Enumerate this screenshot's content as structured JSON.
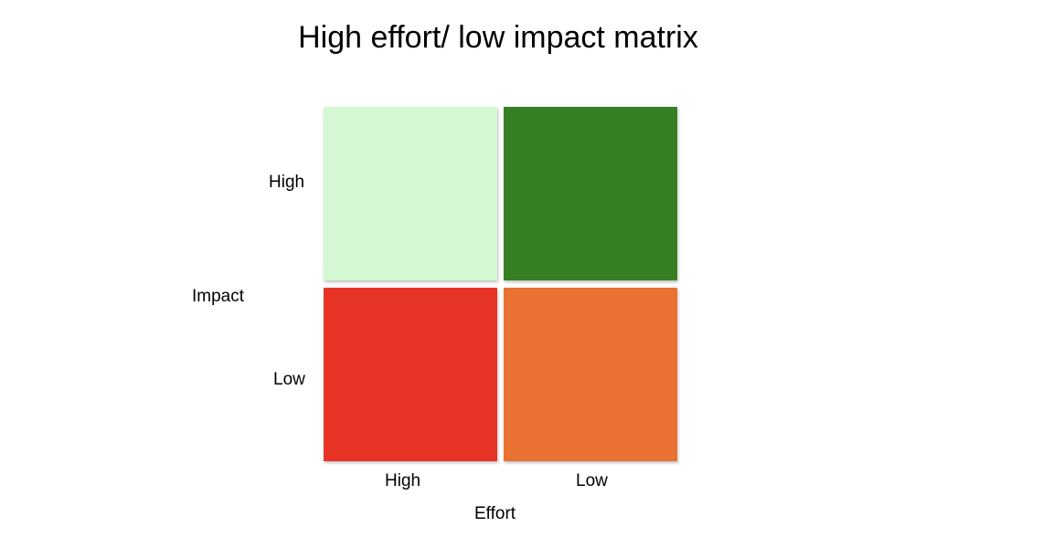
{
  "title": "High effort/ low impact matrix",
  "axes": {
    "y_label": "Impact",
    "x_label": "Effort",
    "y_ticks": [
      "High",
      "Low"
    ],
    "x_ticks": [
      "High",
      "Low"
    ]
  },
  "quadrants": [
    {
      "impact": "High",
      "effort": "High",
      "color": "#d4f8d4"
    },
    {
      "impact": "High",
      "effort": "Low",
      "color": "#367f23"
    },
    {
      "impact": "Low",
      "effort": "High",
      "color": "#e83427"
    },
    {
      "impact": "Low",
      "effort": "Low",
      "color": "#e97131"
    }
  ]
}
